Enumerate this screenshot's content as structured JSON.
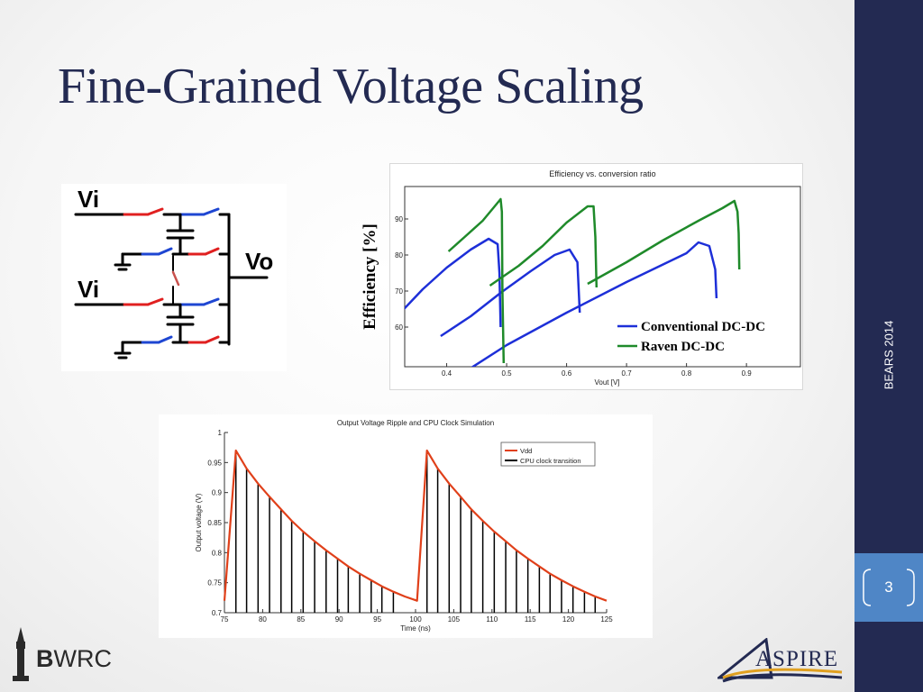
{
  "slide": {
    "title": "Fine-Grained Voltage Scaling",
    "side_label": "BEARS 2014",
    "page_number": "3",
    "logo_left": "BWRC",
    "logo_right": "ASPIRE"
  },
  "colors": {
    "title": "#232a52",
    "sidebar": "#232a52",
    "page_box": "#4f86c6",
    "conventional": "#1d2fd8",
    "raven": "#1f8a2a",
    "vdd": "#e0401a",
    "clock": "#000000",
    "switch_red": "#e02020",
    "switch_blue": "#1e46d2"
  },
  "circuit": {
    "labels": {
      "vi_top": "Vi",
      "vi_bottom": "Vi",
      "vo": "Vo"
    }
  },
  "chart_data": [
    {
      "type": "line",
      "title": "Efficiency vs. conversion ratio",
      "xlabel": "Vout [V]",
      "ylabel": "Efficiency [%]",
      "xlim": [
        0.33,
        0.99
      ],
      "ylim": [
        49,
        99
      ],
      "x_ticks": [
        0.4,
        0.5,
        0.6,
        0.7,
        0.8,
        0.9
      ],
      "x_tick_labels": [
        "0.4",
        "0.5",
        "0.6",
        "0.7",
        "0.8",
        "0.9"
      ],
      "y_ticks": [
        60,
        70,
        80,
        90
      ],
      "grid": false,
      "legend_position": "bottom-right",
      "series": [
        {
          "name": "Conventional DC-DC",
          "color": "#1d2fd8",
          "segments": [
            [
              [
                0.323,
                64
              ],
              [
                0.36,
                70.5
              ],
              [
                0.4,
                76.5
              ],
              [
                0.44,
                81.5
              ],
              [
                0.47,
                84.5
              ],
              [
                0.485,
                83
              ],
              [
                0.488,
                75
              ],
              [
                0.49,
                60
              ]
            ],
            [
              [
                0.39,
                57.5
              ],
              [
                0.44,
                63
              ],
              [
                0.49,
                69.5
              ],
              [
                0.54,
                75.5
              ],
              [
                0.58,
                80
              ],
              [
                0.605,
                81.5
              ],
              [
                0.618,
                78
              ],
              [
                0.622,
                64
              ]
            ],
            [
              [
                0.425,
                47
              ],
              [
                0.5,
                55
              ],
              [
                0.6,
                64
              ],
              [
                0.7,
                72.5
              ],
              [
                0.8,
                80.5
              ],
              [
                0.82,
                83.5
              ],
              [
                0.838,
                82.5
              ],
              [
                0.848,
                76
              ],
              [
                0.85,
                68
              ]
            ]
          ]
        },
        {
          "name": "Raven DC-DC",
          "color": "#1f8a2a",
          "segments": [
            [
              [
                0.403,
                81
              ],
              [
                0.43,
                85
              ],
              [
                0.46,
                89.5
              ],
              [
                0.48,
                93.5
              ],
              [
                0.49,
                95.5
              ],
              [
                0.492,
                92
              ],
              [
                0.493,
                70
              ],
              [
                0.495,
                50
              ]
            ],
            [
              [
                0.472,
                71.5
              ],
              [
                0.52,
                77
              ],
              [
                0.56,
                82.5
              ],
              [
                0.6,
                89
              ],
              [
                0.635,
                93.5
              ],
              [
                0.645,
                93.5
              ],
              [
                0.648,
                85
              ],
              [
                0.65,
                71
              ]
            ],
            [
              [
                0.635,
                72
              ],
              [
                0.7,
                78
              ],
              [
                0.76,
                84
              ],
              [
                0.82,
                89.5
              ],
              [
                0.86,
                93
              ],
              [
                0.88,
                95
              ],
              [
                0.885,
                92
              ],
              [
                0.887,
                86
              ],
              [
                0.888,
                76
              ]
            ]
          ]
        }
      ]
    },
    {
      "type": "line",
      "title": "Output Voltage Ripple and CPU Clock Simulation",
      "xlabel": "Time (ns)",
      "ylabel": "Output voltage (V)",
      "xlim": [
        75,
        125
      ],
      "ylim": [
        0.7,
        1.0
      ],
      "x_ticks": [
        75,
        80,
        85,
        90,
        95,
        100,
        105,
        110,
        115,
        120,
        125
      ],
      "y_ticks": [
        0.7,
        0.75,
        0.8,
        0.85,
        0.9,
        0.95,
        1.0
      ],
      "y_tick_labels": [
        "0.7",
        "0.75",
        "0.8",
        "0.85",
        "0.9",
        "0.95",
        "1"
      ],
      "grid": false,
      "legend_position": "top-right",
      "series": [
        {
          "name": "Vdd",
          "color": "#e0401a",
          "x": [
            75,
            76.5,
            77.9,
            79.4,
            80.9,
            82.4,
            83.8,
            85.3,
            86.8,
            88.3,
            89.8,
            91.2,
            92.7,
            94.2,
            95.6,
            97.1,
            98.6,
            100.2,
            101.5,
            102.9,
            104.4,
            105.9,
            107.3,
            108.8,
            110.3,
            111.8,
            113.2,
            114.7,
            116.2,
            117.6,
            119.1,
            120.6,
            122.1,
            123.5,
            125
          ],
          "values": [
            0.72,
            0.97,
            0.94,
            0.915,
            0.893,
            0.872,
            0.853,
            0.835,
            0.819,
            0.804,
            0.79,
            0.777,
            0.765,
            0.754,
            0.744,
            0.735,
            0.727,
            0.72,
            0.97,
            0.94,
            0.915,
            0.893,
            0.872,
            0.853,
            0.835,
            0.819,
            0.804,
            0.79,
            0.777,
            0.765,
            0.754,
            0.744,
            0.735,
            0.727,
            0.72
          ]
        },
        {
          "name": "CPU clock transition",
          "color": "#000000",
          "x": [
            76.5,
            77.9,
            79.4,
            80.9,
            82.4,
            83.8,
            85.3,
            86.8,
            88.3,
            89.8,
            91.2,
            92.7,
            94.2,
            95.6,
            97.1,
            101.5,
            102.9,
            104.4,
            105.9,
            107.3,
            108.8,
            110.3,
            111.8,
            113.2,
            114.7,
            116.2,
            117.6,
            119.1,
            120.6,
            122.1,
            123.5
          ],
          "values": [
            0.97,
            0.94,
            0.915,
            0.893,
            0.872,
            0.853,
            0.835,
            0.819,
            0.804,
            0.79,
            0.777,
            0.765,
            0.754,
            0.744,
            0.735,
            0.97,
            0.94,
            0.915,
            0.893,
            0.872,
            0.853,
            0.835,
            0.819,
            0.804,
            0.79,
            0.777,
            0.765,
            0.754,
            0.744,
            0.735,
            0.727
          ]
        }
      ]
    }
  ]
}
